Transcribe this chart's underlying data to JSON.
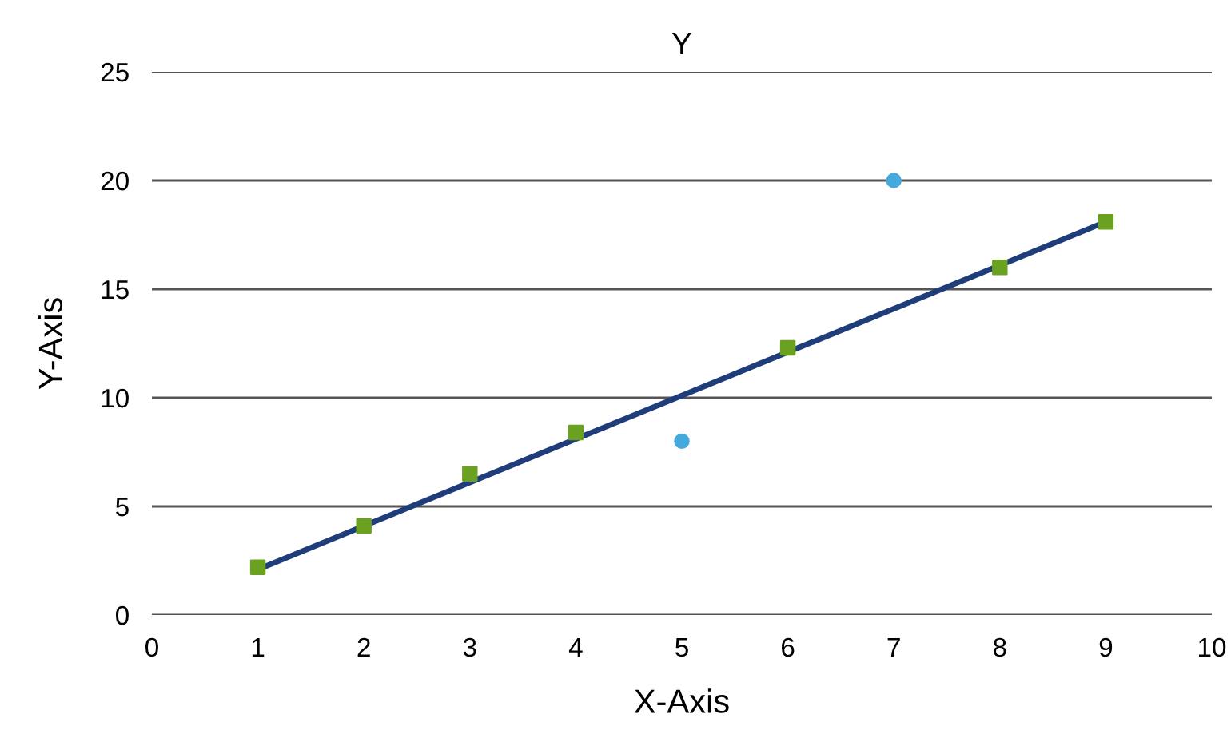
{
  "chart_data": {
    "type": "scatter",
    "title": "Y",
    "xlabel": "X-Axis",
    "ylabel": "Y-Axis",
    "series": [
      {
        "color": "#6aa121",
        "marker": "square",
        "x": [
          1,
          2,
          3,
          4,
          6,
          8,
          9
        ],
        "values": [
          2.2,
          4.1,
          6.5,
          8.4,
          12.3,
          16,
          18.1
        ]
      },
      {
        "color": "#44aadd",
        "marker": "circle",
        "x": [
          5,
          7
        ],
        "values": [
          8,
          20
        ]
      },
      {
        "type": "line",
        "color": "#1f3d7a",
        "marker": "none",
        "x": [
          1,
          9
        ],
        "values": [
          2.1,
          18.1
        ]
      }
    ],
    "xlim": [
      0,
      10
    ],
    "xticks": [
      0,
      1,
      2,
      3,
      4,
      5,
      6,
      7,
      8,
      9,
      10
    ],
    "ylim": [
      0,
      25
    ],
    "yticks": [
      0,
      5,
      10,
      15,
      20,
      25
    ],
    "grid": "y"
  }
}
